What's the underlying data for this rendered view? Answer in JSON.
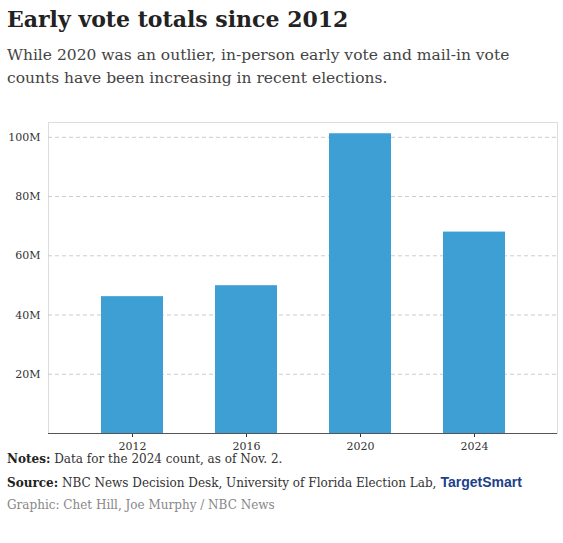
{
  "chart_data": {
    "type": "bar",
    "title": "Early vote totals since 2012",
    "subtitle": "While 2020 was an outlier, in-person early vote and mail-in vote counts have been increasing in recent elections.",
    "categories": [
      "2012",
      "2016",
      "2020",
      "2024"
    ],
    "values": [
      46.2,
      49.9,
      101.2,
      68.0
    ],
    "color": "#3d9fd3",
    "ylim": [
      0,
      105
    ],
    "yticks": [
      {
        "value": 20,
        "label": "20M"
      },
      {
        "value": 40,
        "label": "40M"
      },
      {
        "value": 60,
        "label": "60M"
      },
      {
        "value": 80,
        "label": "80M"
      },
      {
        "value": 100,
        "label": "100M"
      }
    ],
    "grid": true,
    "notes_label": "Notes:",
    "notes": "Data for the 2024 count, as of Nov. 2.",
    "source_label": "Source:",
    "source": "NBC News Decision Desk, University of Florida Election Lab,",
    "source_logo": "TargetSmart",
    "credit": "Graphic: Chet Hill, Joe Murphy / NBC News"
  }
}
